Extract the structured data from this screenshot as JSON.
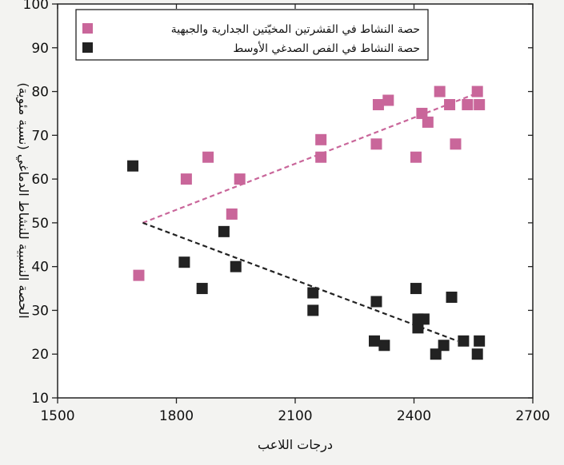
{
  "chart_data": {
    "type": "scatter",
    "title": "",
    "xlabel": "درجات اللاعب",
    "ylabel": "الحصة النسبية للنشاط الدماغي (نسبة مئوية)",
    "xlim": [
      1500,
      2700
    ],
    "ylim": [
      10,
      100
    ],
    "xticks": [
      1500,
      1800,
      2100,
      2400,
      2700
    ],
    "yticks": [
      10,
      20,
      30,
      40,
      50,
      60,
      70,
      80,
      90,
      100
    ],
    "grid": false,
    "legend": "top-left",
    "series": [
      {
        "name": "حصة النشاط في القشرتين المخيّتين الجدارية والجبهية",
        "color": "#c9669a",
        "marker": "square",
        "points": [
          [
            1705,
            38
          ],
          [
            1825,
            60
          ],
          [
            1880,
            65
          ],
          [
            1940,
            52
          ],
          [
            1960,
            60
          ],
          [
            2165,
            69
          ],
          [
            2165,
            65
          ],
          [
            2305,
            68
          ],
          [
            2310,
            77
          ],
          [
            2335,
            78
          ],
          [
            2405,
            65
          ],
          [
            2420,
            75
          ],
          [
            2435,
            73
          ],
          [
            2465,
            80
          ],
          [
            2490,
            77
          ],
          [
            2505,
            68
          ],
          [
            2535,
            77
          ],
          [
            2560,
            80
          ],
          [
            2565,
            77
          ]
        ],
        "trend": [
          [
            1715,
            50
          ],
          [
            2570,
            80
          ]
        ]
      },
      {
        "name": "حصة النشاط في الفص الصدغي الأوسط",
        "color": "#222222",
        "marker": "square",
        "points": [
          [
            1690,
            63
          ],
          [
            1820,
            41
          ],
          [
            1865,
            35
          ],
          [
            1920,
            48
          ],
          [
            1950,
            40
          ],
          [
            2145,
            34
          ],
          [
            2145,
            30
          ],
          [
            2300,
            23
          ],
          [
            2305,
            32
          ],
          [
            2325,
            22
          ],
          [
            2405,
            35
          ],
          [
            2410,
            28
          ],
          [
            2410,
            26
          ],
          [
            2425,
            28
          ],
          [
            2455,
            20
          ],
          [
            2475,
            22
          ],
          [
            2495,
            33
          ],
          [
            2525,
            23
          ],
          [
            2560,
            20
          ],
          [
            2565,
            23
          ]
        ],
        "trend": [
          [
            1715,
            50
          ],
          [
            2510,
            23
          ]
        ]
      }
    ]
  }
}
